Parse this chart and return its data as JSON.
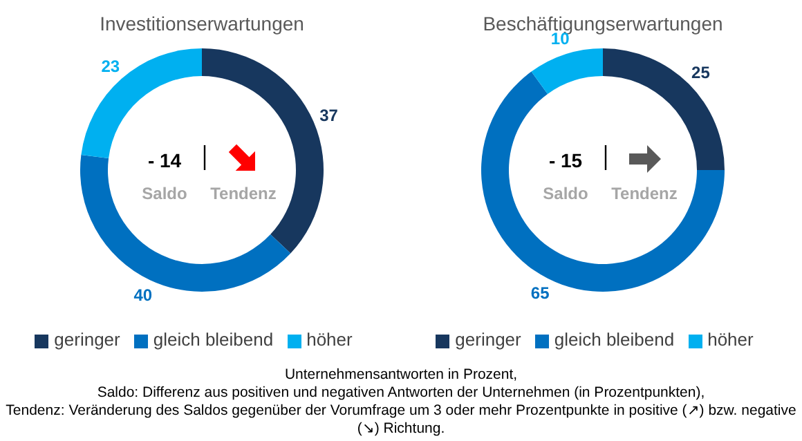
{
  "chart_data": [
    {
      "type": "donut",
      "title": "Investitionserwartungen",
      "categories": [
        "geringer",
        "gleich bleibend",
        "höher"
      ],
      "values": [
        37,
        40,
        23
      ],
      "colors": [
        "#17375e",
        "#0070c0",
        "#00b0f0"
      ],
      "data_labels": true,
      "legend": "bottom",
      "annotations": [
        "- 14",
        "Saldo",
        "Tendenz",
        "Unternehmensantworten in Prozent,",
        "Saldo: Differenz aus positiven und negativen Antworten der Unternehmen (in Prozentpunkten),",
        "Tendenz: Veränderung des Saldos gegenüber der Vorumfrage um 3 oder mehr Prozentpunkte in positive (↗) bzw. negative (↘) Richtung."
      ]
    },
    {
      "type": "donut",
      "title": "Beschäftigungserwartungen",
      "categories": [
        "geringer",
        "gleich bleibend",
        "höher"
      ],
      "values": [
        25,
        65,
        10
      ],
      "colors": [
        "#17375e",
        "#0070c0",
        "#00b0f0"
      ],
      "data_labels": true,
      "legend": "bottom",
      "annotations": [
        "- 15",
        "Saldo",
        "Tendenz"
      ]
    }
  ]
}
